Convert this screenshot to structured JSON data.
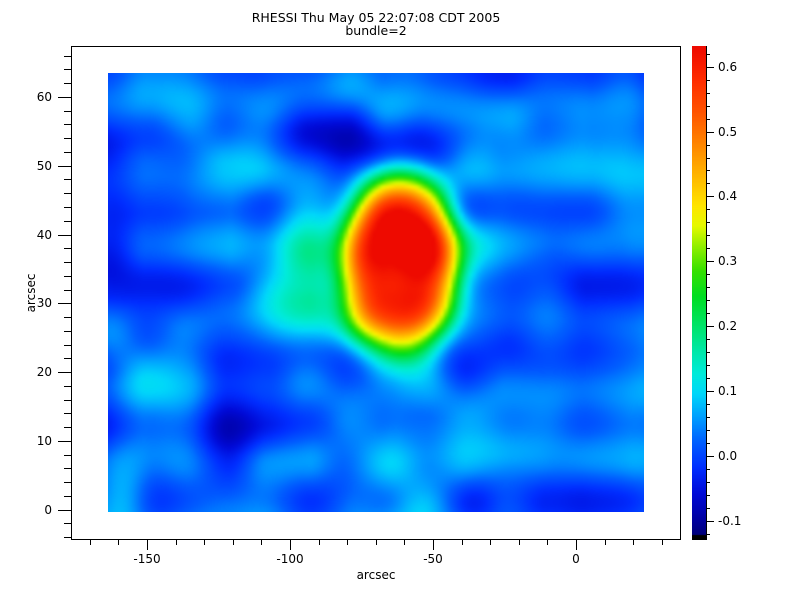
{
  "window": {
    "background": "#ffffff"
  },
  "title": {
    "line1": "RHESSI Thu May 05 22:07:08 CDT 2005",
    "line2": "bundle=2"
  },
  "chart_data": {
    "type": "heatmap",
    "title": "RHESSI Thu May 05 22:07:08 CDT 2005",
    "subtitle": "bundle=2",
    "xlabel": "arcsec",
    "ylabel": "arcsec",
    "grid": false,
    "x_axis": {
      "range": [
        -176.6,
        36.7
      ],
      "major_ticks": [
        -150,
        -100,
        -50,
        0
      ],
      "major_tick_labels": [
        "-150",
        "-100",
        "-50",
        "0"
      ],
      "minor_tick_step": 10
    },
    "y_axis": {
      "range": [
        -4.4,
        67.4
      ],
      "major_ticks": [
        0,
        10,
        20,
        30,
        40,
        50,
        60
      ],
      "major_tick_labels": [
        "0",
        "10",
        "20",
        "30",
        "40",
        "50",
        "60"
      ],
      "minor_tick_step": 2
    },
    "image_extent_arcsec": {
      "x": [
        -163.6,
        23.8
      ],
      "y": [
        -0.3,
        63.5
      ]
    },
    "colorbar": {
      "position": "right",
      "range": [
        -0.13,
        0.632
      ],
      "major_ticks": [
        -0.1,
        0.0,
        0.1,
        0.2,
        0.3,
        0.4,
        0.5,
        0.6
      ],
      "major_tick_labels": [
        "-0.1",
        "0.0",
        "0.1",
        "0.2",
        "0.3",
        "0.4",
        "0.5",
        "0.6"
      ],
      "minor_tick_step": 0.02,
      "bottom_cap_color": "#000000"
    },
    "colormap_stops": [
      [
        -0.13,
        "#00006e"
      ],
      [
        -0.1,
        "#0000a0"
      ],
      [
        -0.06,
        "#000ad7"
      ],
      [
        -0.02,
        "#002dff"
      ],
      [
        0.02,
        "#005fff"
      ],
      [
        0.06,
        "#00a0ff"
      ],
      [
        0.095,
        "#00d7fa"
      ],
      [
        0.125,
        "#00ebdc"
      ],
      [
        0.16,
        "#00e8aa"
      ],
      [
        0.2,
        "#00e469"
      ],
      [
        0.245,
        "#00de23"
      ],
      [
        0.285,
        "#37e100"
      ],
      [
        0.325,
        "#96f000"
      ],
      [
        0.355,
        "#e6fa00"
      ],
      [
        0.385,
        "#ffe600"
      ],
      [
        0.43,
        "#ffb900"
      ],
      [
        0.48,
        "#ff8700"
      ],
      [
        0.53,
        "#ff5500"
      ],
      [
        0.58,
        "#ff2d00"
      ],
      [
        0.632,
        "#ee0a00"
      ]
    ],
    "source_feature": {
      "description": "bright compact source",
      "center_arcsec": [
        -61.5,
        35.4
      ],
      "peak_value": 0.63,
      "half_width_arcsec": [
        20.4,
        13.6
      ],
      "wings": [
        {
          "center": [
            -95,
            32
          ],
          "amplitude": 0.1,
          "sigma": [
            12,
            6.5
          ]
        },
        {
          "center": [
            -30,
            36.5
          ],
          "amplitude": 0.08,
          "sigma": [
            11,
            6.0
          ]
        },
        {
          "center": [
            -158,
            1.5
          ],
          "amplitude": 0.08,
          "sigma": [
            6,
            4.0
          ]
        }
      ]
    },
    "background_texture": {
      "base": -0.085,
      "amplitude": 0.21,
      "octaves": [
        {
          "wx": 30,
          "wy": 10.5,
          "weight": 0.62
        },
        {
          "wx": 14,
          "wy": 6.2,
          "weight": 0.38
        }
      ],
      "band_amplitude": 0.018,
      "band_freq": 0.6,
      "band_phase": 2.1,
      "seed": 3
    }
  }
}
